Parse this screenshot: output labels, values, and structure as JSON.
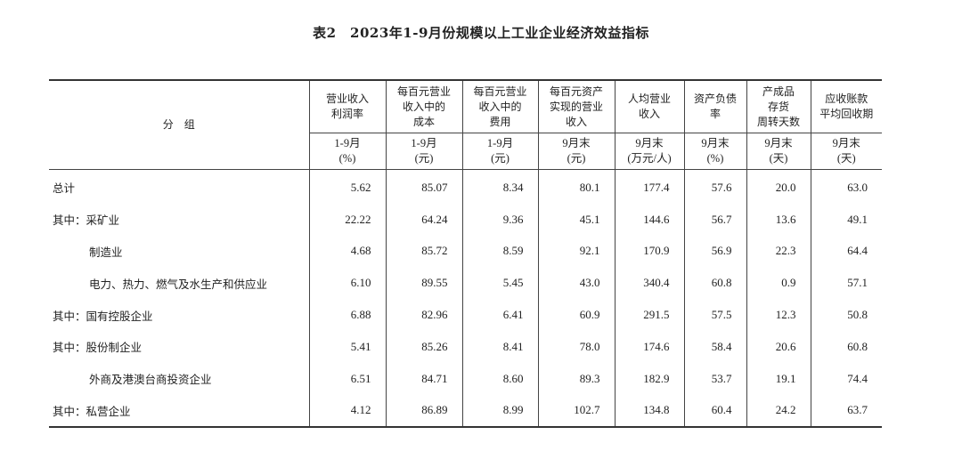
{
  "title": "表2　2023年1-9月份规模以上工业企业经济效益指标",
  "group_header": "分　组",
  "columns": [
    {
      "name": [
        "营业收入",
        "利润率"
      ],
      "period": "1-9月",
      "unit": "(%)"
    },
    {
      "name": [
        "每百元营业",
        "收入中的",
        "成本"
      ],
      "period": "1-9月",
      "unit": "(元)"
    },
    {
      "name": [
        "每百元营业",
        "收入中的",
        "费用"
      ],
      "period": "1-9月",
      "unit": "(元)"
    },
    {
      "name": [
        "每百元资产",
        "实现的营业",
        "收入"
      ],
      "period": "9月末",
      "unit": "(元)"
    },
    {
      "name": [
        "人均营业",
        "收入"
      ],
      "period": "9月末",
      "unit": "(万元/人)"
    },
    {
      "name": [
        "资产负债",
        "率"
      ],
      "period": "9月末",
      "unit": "(%)"
    },
    {
      "name": [
        "产成品",
        "存货",
        "周转天数"
      ],
      "period": "9月末",
      "unit": "(天)"
    },
    {
      "name": [
        "应收账款",
        "平均回收期"
      ],
      "period": "9月末",
      "unit": "(天)"
    }
  ],
  "rows": [
    {
      "label": "总计",
      "indent": false,
      "values": [
        "5.62",
        "85.07",
        "8.34",
        "80.1",
        "177.4",
        "57.6",
        "20.0",
        "63.0"
      ]
    },
    {
      "label": "其中：采矿业",
      "indent": false,
      "values": [
        "22.22",
        "64.24",
        "9.36",
        "45.1",
        "144.6",
        "56.7",
        "13.6",
        "49.1"
      ]
    },
    {
      "label": "制造业",
      "indent": true,
      "values": [
        "4.68",
        "85.72",
        "8.59",
        "92.1",
        "170.9",
        "56.9",
        "22.3",
        "64.4"
      ]
    },
    {
      "label": "电力、热力、燃气及水生产和供应业",
      "indent": true,
      "values": [
        "6.10",
        "89.55",
        "5.45",
        "43.0",
        "340.4",
        "60.8",
        "0.9",
        "57.1"
      ]
    },
    {
      "label": "其中：国有控股企业",
      "indent": false,
      "values": [
        "6.88",
        "82.96",
        "6.41",
        "60.9",
        "291.5",
        "57.5",
        "12.3",
        "50.8"
      ]
    },
    {
      "label": "其中：股份制企业",
      "indent": false,
      "values": [
        "5.41",
        "85.26",
        "8.41",
        "78.0",
        "174.6",
        "58.4",
        "20.6",
        "60.8"
      ]
    },
    {
      "label": "外商及港澳台商投资企业",
      "indent": true,
      "values": [
        "6.51",
        "84.71",
        "8.60",
        "89.3",
        "182.9",
        "53.7",
        "19.1",
        "74.4"
      ]
    },
    {
      "label": "其中：私营企业",
      "indent": false,
      "values": [
        "4.12",
        "86.89",
        "8.99",
        "102.7",
        "134.8",
        "60.4",
        "24.2",
        "63.7"
      ]
    }
  ]
}
